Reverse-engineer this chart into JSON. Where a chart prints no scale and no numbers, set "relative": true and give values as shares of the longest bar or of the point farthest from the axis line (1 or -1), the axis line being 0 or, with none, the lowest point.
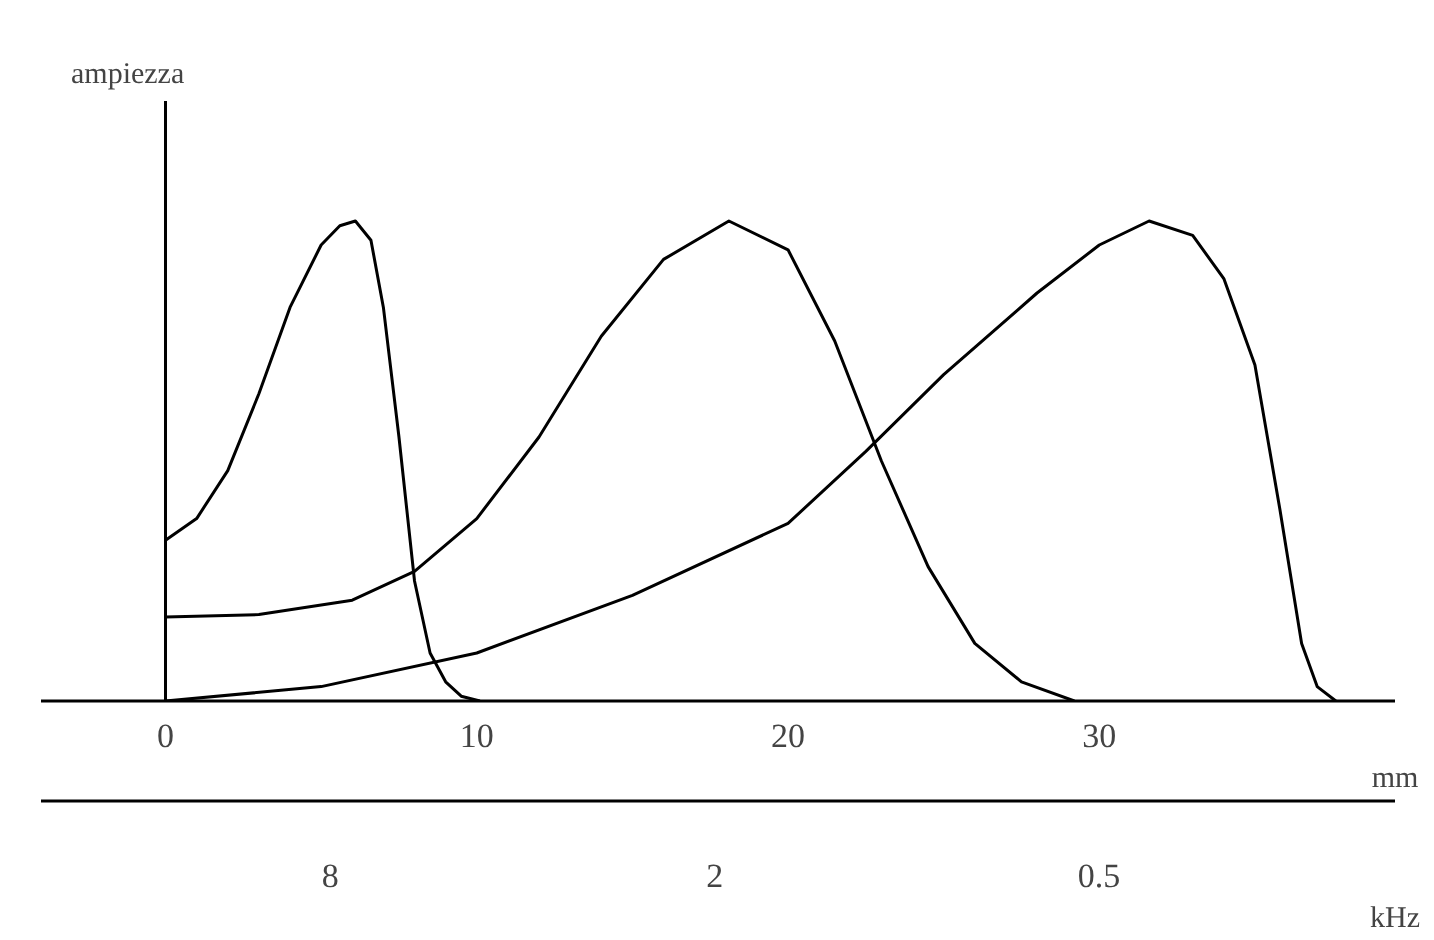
{
  "chart_data": {
    "type": "line",
    "relative": true,
    "ylabel": "ampiezza",
    "xlabel": "mm",
    "x2label": "kHz",
    "xlim": [
      -4,
      39.5
    ],
    "xticks": [
      0,
      10,
      20,
      30
    ],
    "x2lim": [
      22.7,
      0.172
    ],
    "x2ticks": [
      8,
      2,
      0.5
    ],
    "log": "x2",
    "ref_lines": [
      {
        "axis": "x",
        "value": 0,
        "label": null,
        "color": "#000000"
      }
    ],
    "grid": false,
    "marker": "none",
    "line_style": "solid",
    "series": [
      {
        "color": "#000000",
        "x": [
          0,
          1,
          2,
          3,
          4,
          5,
          5.6,
          6.1,
          6.6,
          7.0,
          7.5,
          8.0,
          8.5,
          9.0,
          9.5,
          10.1
        ],
        "values": [
          0.335,
          0.38,
          0.48,
          0.64,
          0.82,
          0.95,
          0.99,
          1.0,
          0.96,
          0.82,
          0.55,
          0.25,
          0.1,
          0.04,
          0.01,
          0
        ]
      },
      {
        "color": "#000000",
        "x": [
          0,
          3,
          6,
          8,
          10,
          12,
          14,
          16,
          18.1,
          20,
          21.5,
          23,
          24.5,
          26,
          27.5,
          29.2
        ],
        "values": [
          0.175,
          0.18,
          0.21,
          0.27,
          0.38,
          0.55,
          0.76,
          0.92,
          1.0,
          0.94,
          0.75,
          0.5,
          0.28,
          0.12,
          0.04,
          0
        ]
      },
      {
        "color": "#000000",
        "x": [
          0,
          5,
          10,
          15,
          20,
          22.5,
          25,
          28,
          30,
          31.6,
          33,
          34,
          35,
          35.8,
          36.5,
          37,
          37.6
        ],
        "values": [
          0,
          0.03,
          0.1,
          0.22,
          0.37,
          0.52,
          0.68,
          0.85,
          0.95,
          1.0,
          0.97,
          0.88,
          0.7,
          0.4,
          0.12,
          0.03,
          0
        ]
      }
    ]
  }
}
